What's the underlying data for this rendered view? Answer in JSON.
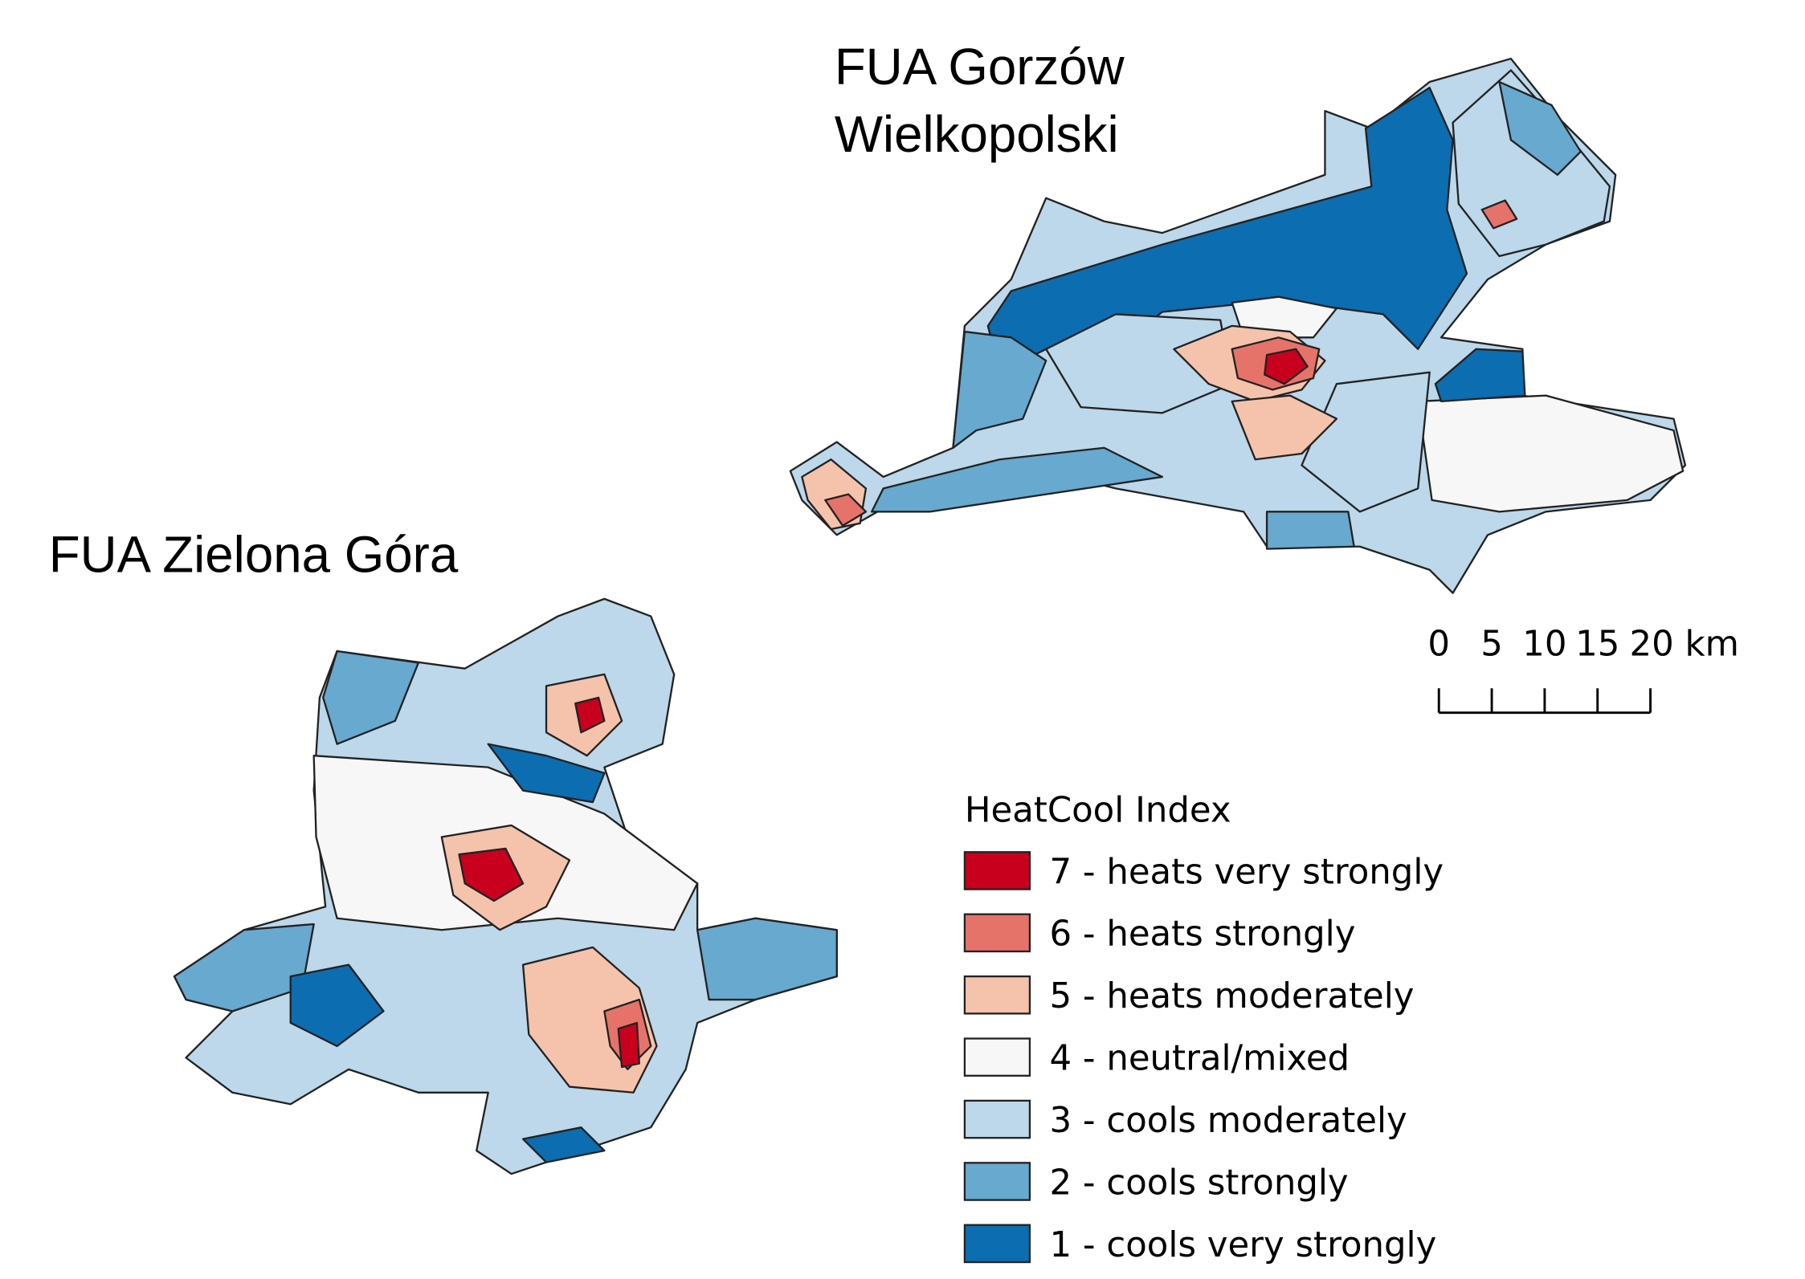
{
  "maps": [
    {
      "title_lines": [
        "FUA Gorzów",
        "Wielkopolski"
      ]
    },
    {
      "title_lines": [
        "FUA Zielona Góra"
      ]
    }
  ],
  "scale_bar": {
    "labels": [
      "0",
      "5",
      "10",
      "15",
      "20 km"
    ]
  },
  "legend": {
    "title": "HeatCool Index",
    "items": [
      {
        "label": "7 - heats very strongly",
        "color": "#c8001e"
      },
      {
        "label": "6 - heats strongly",
        "color": "#e6736a"
      },
      {
        "label": "5 - heats moderately",
        "color": "#f5c3ab"
      },
      {
        "label": "4 - neutral/mixed",
        "color": "#f7f7f7"
      },
      {
        "label": "3 - cools moderately",
        "color": "#bcd8ea"
      },
      {
        "label": "2 - cools strongly",
        "color": "#67a9cf"
      },
      {
        "label": "1 - cools very strongly",
        "color": "#0c6db0"
      }
    ]
  }
}
